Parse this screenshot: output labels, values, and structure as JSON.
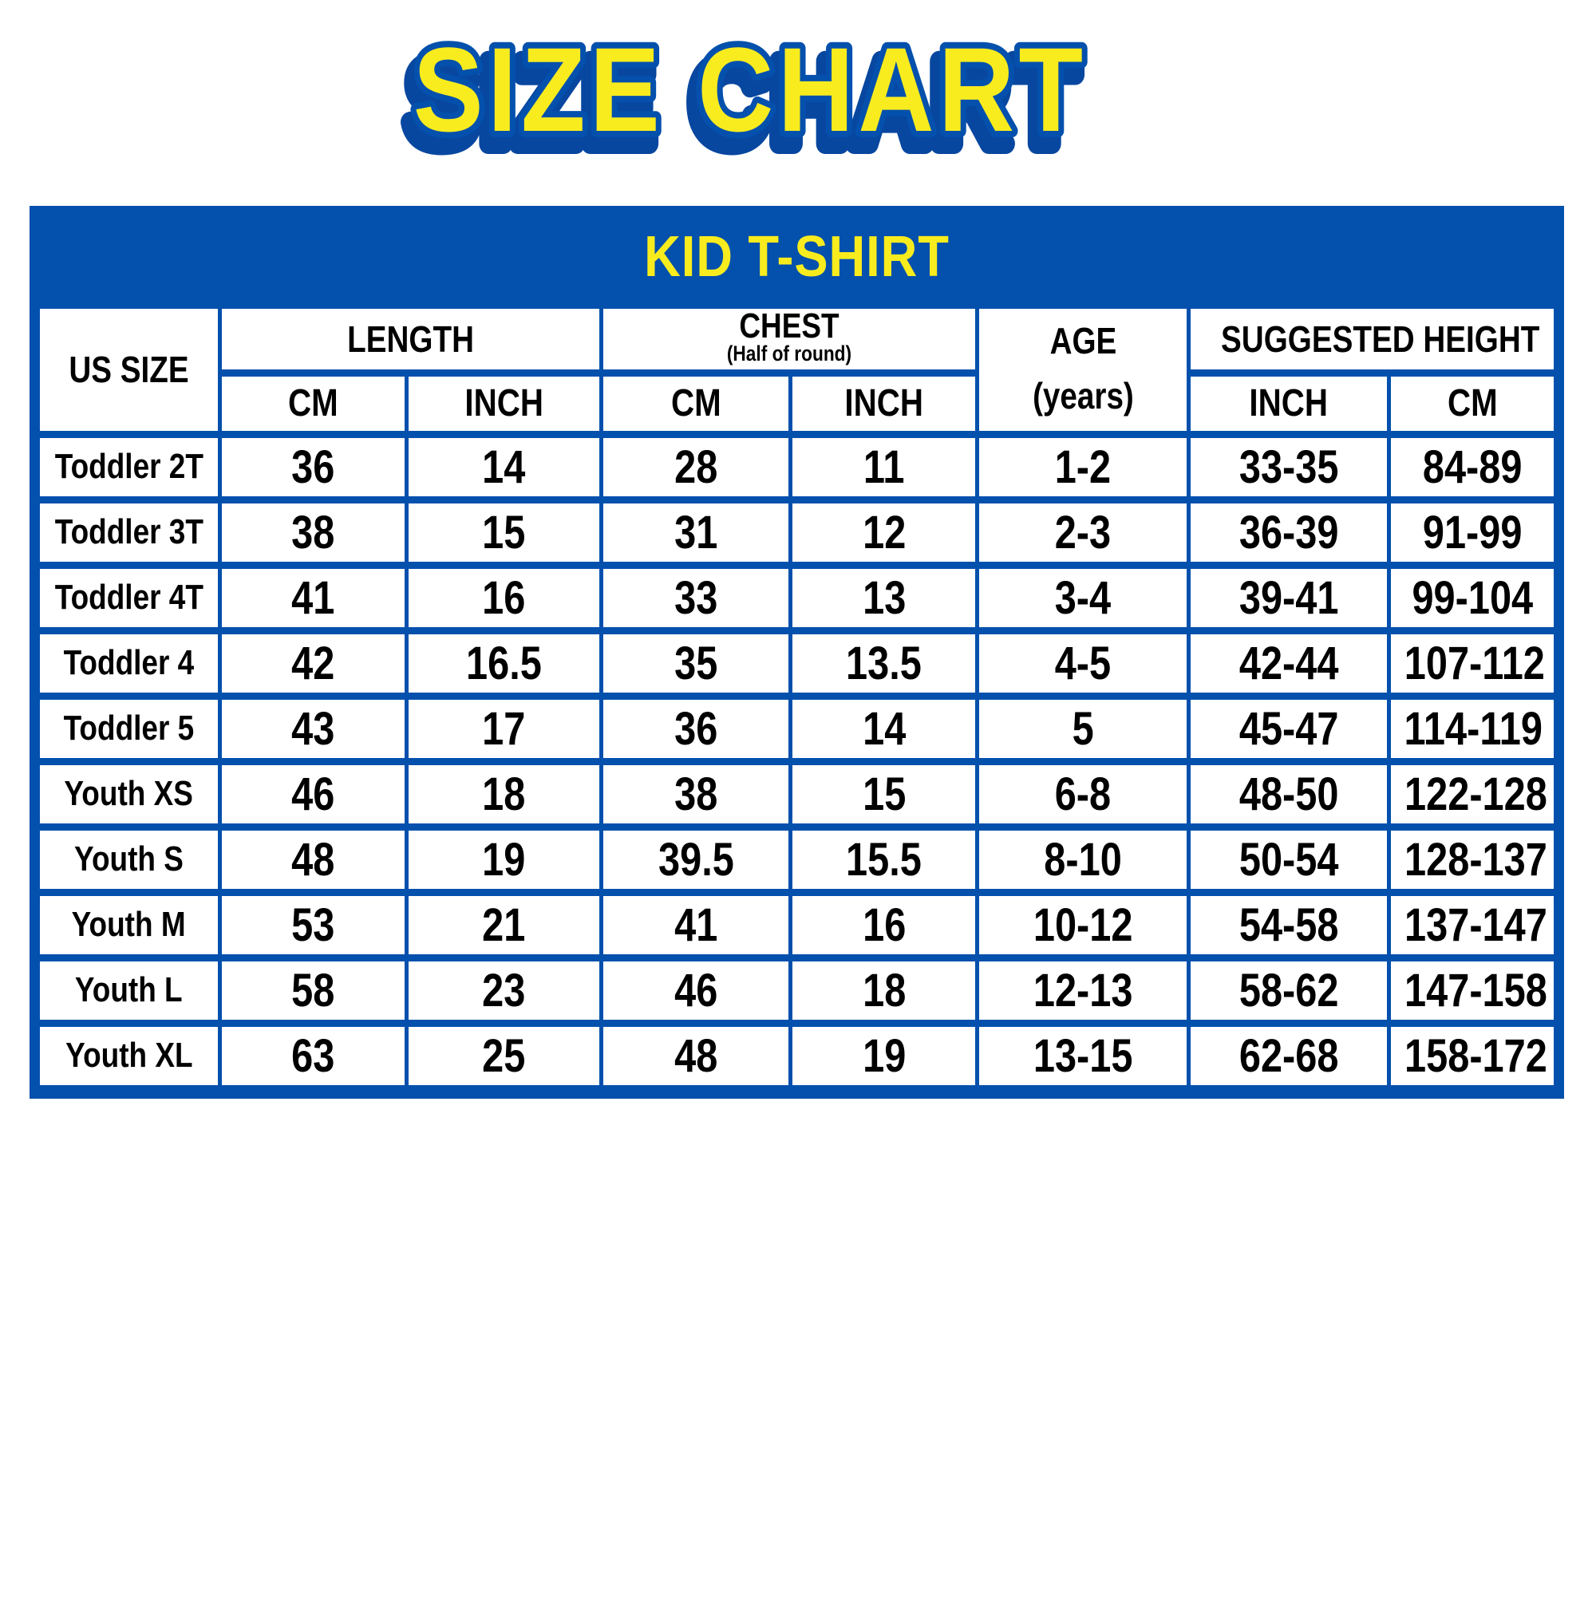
{
  "page_title": "SIZE CHART",
  "colors": {
    "accent_blue": "#0450AD",
    "accent_yellow": "#F8EC1E",
    "text_black": "#000000",
    "background": "#FFFFFF"
  },
  "table": {
    "title": "KID T-SHIRT",
    "header": {
      "us_size": "US SIZE",
      "length": "LENGTH",
      "chest": "CHEST",
      "chest_note": "(Half of round)",
      "age_line1": "AGE",
      "age_line2": "(years)",
      "suggested_height": "SUGGESTED HEIGHT"
    },
    "subheader": {
      "length_cm": "CM",
      "length_inch": "INCH",
      "chest_cm": "CM",
      "chest_inch": "INCH",
      "height_inch": "INCH",
      "height_cm": "CM"
    },
    "row_keys": [
      "us_size",
      "length_cm",
      "length_inch",
      "chest_cm",
      "chest_inch",
      "age",
      "height_inch",
      "height_cm"
    ],
    "rows": [
      {
        "us_size": "Toddler 2T",
        "length_cm": "36",
        "length_inch": "14",
        "chest_cm": "28",
        "chest_inch": "11",
        "age": "1-2",
        "height_inch": "33-35",
        "height_cm": "84-89"
      },
      {
        "us_size": "Toddler 3T",
        "length_cm": "38",
        "length_inch": "15",
        "chest_cm": "31",
        "chest_inch": "12",
        "age": "2-3",
        "height_inch": "36-39",
        "height_cm": "91-99"
      },
      {
        "us_size": "Toddler 4T",
        "length_cm": "41",
        "length_inch": "16",
        "chest_cm": "33",
        "chest_inch": "13",
        "age": "3-4",
        "height_inch": "39-41",
        "height_cm": "99-104"
      },
      {
        "us_size": "Toddler 4",
        "length_cm": "42",
        "length_inch": "16.5",
        "chest_cm": "35",
        "chest_inch": "13.5",
        "age": "4-5",
        "height_inch": "42-44",
        "height_cm": "107-112"
      },
      {
        "us_size": "Toddler 5",
        "length_cm": "43",
        "length_inch": "17",
        "chest_cm": "36",
        "chest_inch": "14",
        "age": "5",
        "height_inch": "45-47",
        "height_cm": "114-119"
      },
      {
        "us_size": "Youth XS",
        "length_cm": "46",
        "length_inch": "18",
        "chest_cm": "38",
        "chest_inch": "15",
        "age": "6-8",
        "height_inch": "48-50",
        "height_cm": "122-128"
      },
      {
        "us_size": "Youth S",
        "length_cm": "48",
        "length_inch": "19",
        "chest_cm": "39.5",
        "chest_inch": "15.5",
        "age": "8-10",
        "height_inch": "50-54",
        "height_cm": "128-137"
      },
      {
        "us_size": "Youth M",
        "length_cm": "53",
        "length_inch": "21",
        "chest_cm": "41",
        "chest_inch": "16",
        "age": "10-12",
        "height_inch": "54-58",
        "height_cm": "137-147"
      },
      {
        "us_size": "Youth L",
        "length_cm": "58",
        "length_inch": "23",
        "chest_cm": "46",
        "chest_inch": "18",
        "age": "12-13",
        "height_inch": "58-62",
        "height_cm": "147-158"
      },
      {
        "us_size": "Youth XL",
        "length_cm": "63",
        "length_inch": "25",
        "chest_cm": "48",
        "chest_inch": "19",
        "age": "13-15",
        "height_inch": "62-68",
        "height_cm": "158-172"
      }
    ]
  }
}
